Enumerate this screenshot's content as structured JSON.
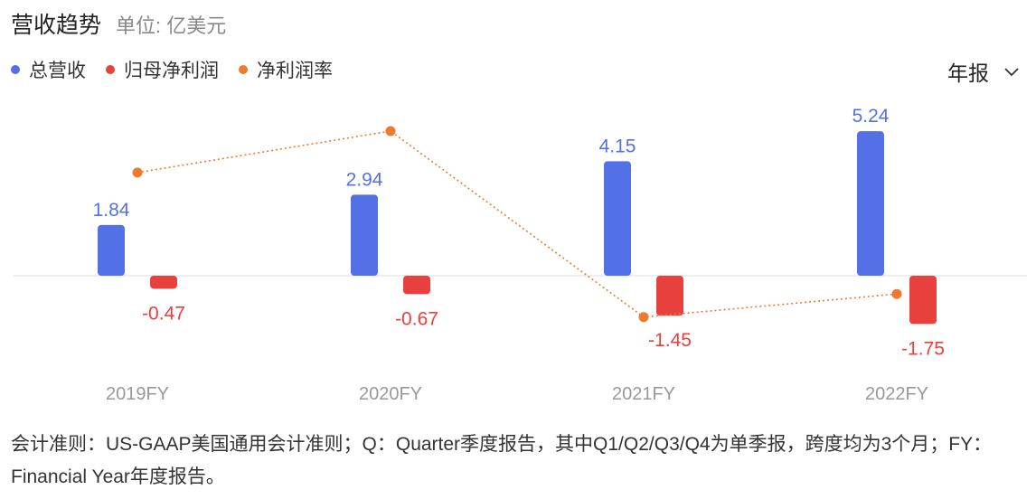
{
  "header": {
    "title": "营收趋势",
    "unit": "单位: 亿美元"
  },
  "legend": [
    {
      "label": "总营收",
      "color": "#5470e6"
    },
    {
      "label": "归母净利润",
      "color": "#e8413d"
    },
    {
      "label": "净利润率",
      "color": "#ed7a2e"
    }
  ],
  "period_selector": {
    "label": "年报"
  },
  "chart_data": {
    "type": "bar",
    "categories": [
      "2019FY",
      "2020FY",
      "2021FY",
      "2022FY"
    ],
    "series": [
      {
        "name": "总营收",
        "type": "bar",
        "color": "#5470e6",
        "values": [
          1.84,
          2.94,
          4.15,
          5.24
        ]
      },
      {
        "name": "归母净利润",
        "type": "bar",
        "color": "#e8413d",
        "values": [
          -0.47,
          -0.67,
          -1.45,
          -1.75
        ]
      },
      {
        "name": "净利润率",
        "type": "line",
        "style": "dotted",
        "color": "#ed7a2e",
        "values": [
          -25.5,
          -22.8,
          -34.9,
          -33.4
        ]
      }
    ],
    "value_labels_shown_for": [
      "总营收",
      "归母净利润"
    ],
    "grid": false
  },
  "footnote": "会计准则：US-GAAP美国通用会计准则；Q：Quarter季度报告，其中Q1/Q2/Q3/Q4为单季报，跨度均为3个月；FY：Financial Year年度报告。"
}
